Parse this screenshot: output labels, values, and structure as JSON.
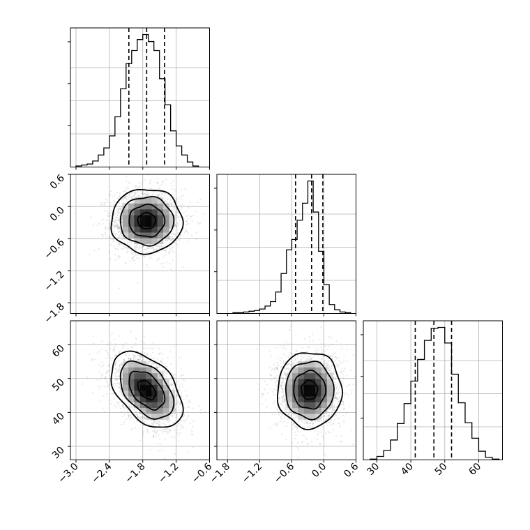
{
  "chart_data": {
    "type": "corner",
    "title": "",
    "grid": true,
    "parameters": [
      {
        "id": "p1",
        "label": "",
        "range": [
          -3.1,
          -0.6
        ],
        "ticks": [
          -3.0,
          -2.4,
          -1.8,
          -1.2,
          -0.6
        ],
        "tick_labels": [
          "−3.0",
          "−2.4",
          "−1.8",
          "−1.2",
          "−0.6"
        ],
        "quantiles": [
          -2.05,
          -1.73,
          -1.41
        ],
        "histogram": {
          "bin_edges": [
            -3.0,
            -2.9,
            -2.8,
            -2.7,
            -2.6,
            -2.5,
            -2.4,
            -2.3,
            -2.2,
            -2.1,
            -2.0,
            -1.9,
            -1.8,
            -1.7,
            -1.6,
            -1.5,
            -1.4,
            -1.3,
            -1.2,
            -1.1,
            -1.0,
            -0.9,
            -0.8
          ],
          "counts": [
            1,
            2,
            3,
            6,
            12,
            19,
            31,
            50,
            78,
            103,
            116,
            127,
            132,
            125,
            116,
            88,
            62,
            36,
            21,
            12,
            5,
            1
          ]
        }
      },
      {
        "id": "p2",
        "label": "",
        "range": [
          -2.0,
          0.6
        ],
        "ticks": [
          -1.8,
          -1.2,
          -0.6,
          0.0,
          0.6
        ],
        "tick_labels": [
          "−1.8",
          "−1.2",
          "−0.6",
          "0.0",
          "0.6"
        ],
        "quantiles": [
          -0.53,
          -0.23,
          -0.02
        ],
        "histogram": {
          "bin_edges": [
            -1.7,
            -1.6,
            -1.5,
            -1.4,
            -1.3,
            -1.2,
            -1.1,
            -1.0,
            -0.9,
            -0.8,
            -0.7,
            -0.6,
            -0.5,
            -0.4,
            -0.3,
            -0.2,
            -0.1,
            0.0,
            0.1,
            0.2,
            0.3,
            0.4,
            0.5
          ],
          "counts": [
            1,
            1,
            2,
            3,
            4,
            6,
            10,
            16,
            29,
            54,
            86,
            100,
            126,
            149,
            179,
            137,
            84,
            39,
            12,
            5,
            2,
            1
          ]
        }
      },
      {
        "id": "p3",
        "label": "",
        "range": [
          26,
          67
        ],
        "ticks": [
          30,
          40,
          50,
          60
        ],
        "tick_labels": [
          "30",
          "40",
          "50",
          "60"
        ],
        "quantiles": [
          41.3,
          46.8,
          52.0
        ],
        "histogram": {
          "bin_edges": [
            28,
            30,
            32,
            34,
            36,
            38,
            40,
            42,
            44,
            46,
            48,
            50,
            52,
            54,
            56,
            58,
            60,
            62,
            64,
            66
          ],
          "counts": [
            1,
            4,
            11,
            23,
            42,
            65,
            91,
            116,
            138,
            152,
            153,
            135,
            99,
            66,
            43,
            25,
            10,
            3,
            1
          ]
        }
      }
    ],
    "pairs": [
      {
        "x": "p1",
        "y": "p2",
        "mean": [
          -1.73,
          -0.27
        ],
        "sd": [
          0.32,
          0.3
        ],
        "corr": 0.0,
        "samples": 2200,
        "levels": [
          0.5,
          1.0,
          1.5,
          2.0
        ]
      },
      {
        "x": "p1",
        "y": "p3",
        "mean": [
          -1.73,
          46.6
        ],
        "sd": [
          0.32,
          5.6
        ],
        "corr": -0.45,
        "samples": 2200,
        "levels": [
          0.5,
          1.0,
          1.5,
          2.0
        ]
      },
      {
        "x": "p2",
        "y": "p3",
        "mean": [
          -0.27,
          46.6
        ],
        "sd": [
          0.3,
          5.6
        ],
        "corr": 0.0,
        "samples": 2200,
        "levels": [
          0.5,
          1.0,
          1.5,
          2.0
        ]
      }
    ],
    "colors": {
      "line": "#000000",
      "grid": "#b0b0b0",
      "samples": "#6e6e6e",
      "density": "#000000",
      "background": "#ffffff"
    }
  }
}
